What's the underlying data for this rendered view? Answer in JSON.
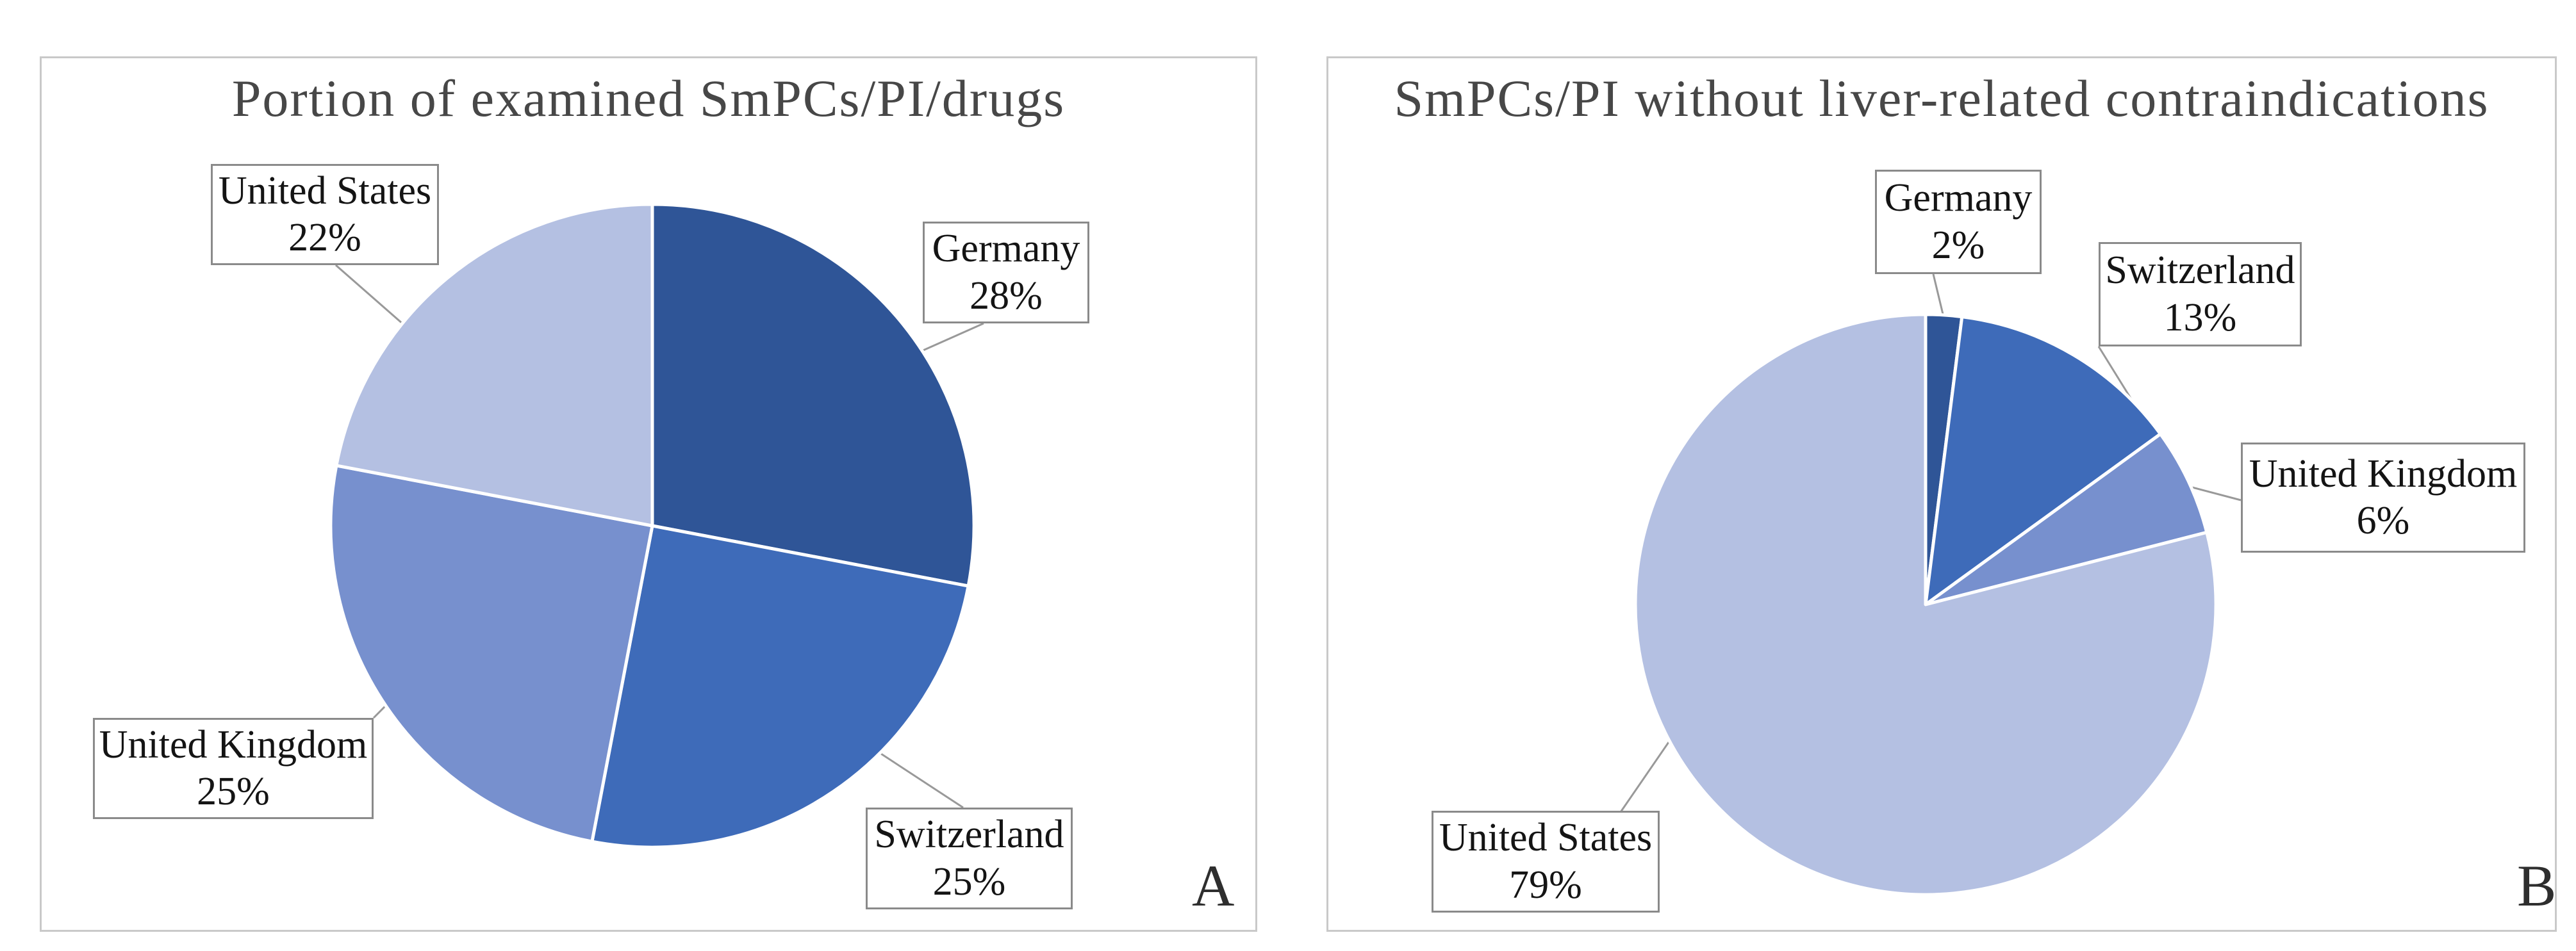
{
  "figure_letters": {
    "left": "A",
    "right": "B"
  },
  "chart_data": [
    {
      "type": "pie",
      "panel_letter": "A",
      "title": "Portion of examined SmPCs/PI/drugs",
      "unit": "%",
      "start_angle_deg": 0,
      "direction": "clockwise",
      "label_style": "boxed callout with leader line, format: name above percent",
      "slices": [
        {
          "label": "Germany",
          "value": 28,
          "display": "28%",
          "color": "#2F5597"
        },
        {
          "label": "Switzerland",
          "value": 25,
          "display": "25%",
          "color": "#3E6BB9"
        },
        {
          "label": "United Kingdom",
          "value": 25,
          "display": "25%",
          "color": "#7790CE"
        },
        {
          "label": "United States",
          "value": 22,
          "display": "22%",
          "color": "#B4C0E2"
        }
      ]
    },
    {
      "type": "pie",
      "panel_letter": "B",
      "title": "SmPCs/PI without liver-related contraindications",
      "unit": "%",
      "start_angle_deg": 0,
      "direction": "clockwise",
      "label_style": "boxed callout with leader line, format: name above percent",
      "slices": [
        {
          "label": "Germany",
          "value": 2,
          "display": "2%",
          "color": "#2F5597"
        },
        {
          "label": "Switzerland",
          "value": 13,
          "display": "13%",
          "color": "#3E6BB9"
        },
        {
          "label": "United Kingdom",
          "value": 6,
          "display": "6%",
          "color": "#7790CE"
        },
        {
          "label": "United States",
          "value": 79,
          "display": "79%",
          "color": "#B4C0E2"
        }
      ]
    }
  ],
  "styles": {
    "background": "#FFFFFF",
    "panel_border": "#C9C9C9",
    "label_box_border": "#8A8A8A",
    "label_text": "#141414",
    "leader_line": "#999999",
    "slice_divider": "#FFFFFF",
    "title_color": "#474747",
    "panel_letter_color": "#2E2E2E"
  }
}
